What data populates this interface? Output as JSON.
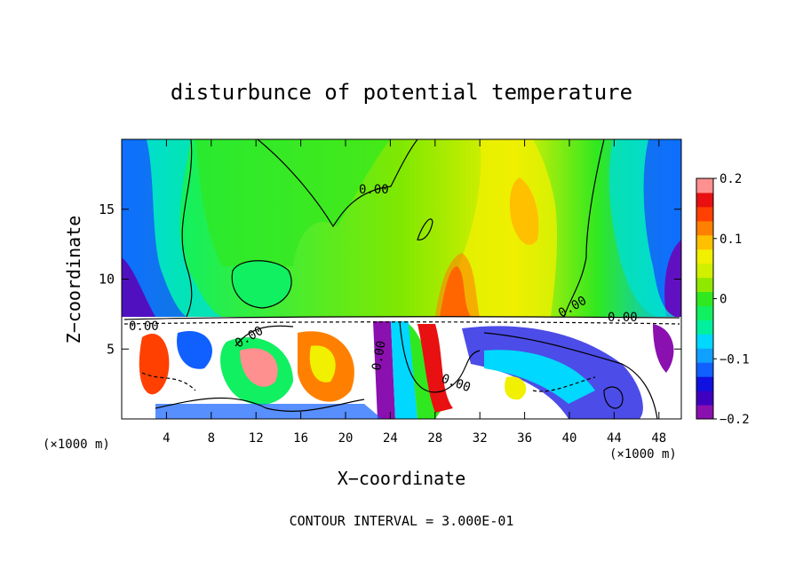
{
  "chart_data": {
    "type": "heatmap",
    "title": "disturbunce of potential temperature",
    "xlabel": "X−coordinate",
    "ylabel": "Z−coordinate",
    "x_unit_left": "(×1000 m)",
    "x_unit_right": "(×1000 m)",
    "x_ticks": [
      "4",
      "8",
      "12",
      "16",
      "20",
      "24",
      "28",
      "32",
      "36",
      "40",
      "44",
      "48"
    ],
    "x_tick_values": [
      4,
      8,
      12,
      16,
      20,
      24,
      28,
      32,
      36,
      40,
      44,
      48
    ],
    "y_ticks": [
      "5",
      "10",
      "15"
    ],
    "y_tick_values": [
      5,
      10,
      15
    ],
    "xlim": [
      0,
      50
    ],
    "ylim": [
      0,
      20
    ],
    "colorbar": {
      "labels": [
        "0.2",
        "0.1",
        "0",
        "−0.1",
        "−0.2"
      ],
      "label_values": [
        0.2,
        0.1,
        0,
        -0.1,
        -0.2
      ],
      "range": [
        -0.2,
        0.2
      ],
      "colors": [
        "#8b10b0",
        "#4000c0",
        "#1010e0",
        "#1060ff",
        "#10a0ff",
        "#00d8ff",
        "#00f0a0",
        "#10f060",
        "#30e820",
        "#90e800",
        "#d0f000",
        "#f0f000",
        "#ffc000",
        "#ff8000",
        "#ff4000",
        "#e81010",
        "#ff9090"
      ]
    },
    "contour_labels": [
      "0.00",
      "0.00",
      "0.00",
      "0.00",
      "0.00",
      "0.00",
      "0.00"
    ],
    "contour_interval": "CONTOUR INTERVAL = 3.000E-01"
  }
}
